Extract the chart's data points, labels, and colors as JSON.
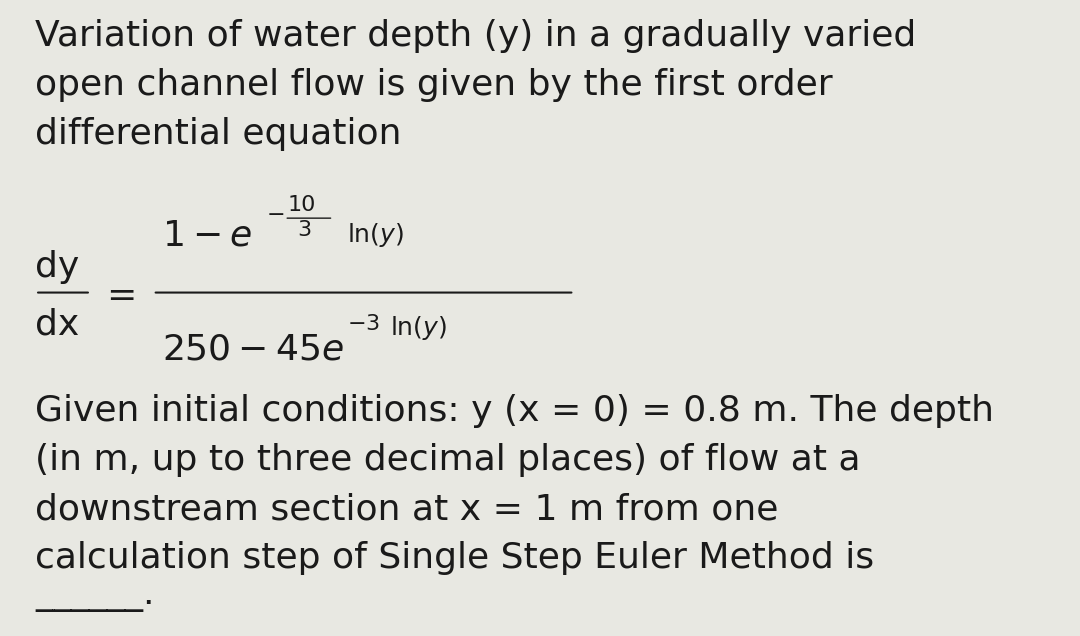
{
  "background_color": "#e8e8e2",
  "text_color": "#1a1a1a",
  "figsize": [
    10.8,
    6.36
  ],
  "dpi": 100,
  "intro_text": "Variation of water depth (y) in a gradually varied\nopen channel flow is given by the first order\ndifferential equation",
  "footer_text": "Given initial conditions: y (x = 0) = 0.8 m. The depth\n(in m, up to three decimal places) of flow at a\ndownstream section at x = 1 m from one\ncalculation step of Single Step Euler Method is",
  "underline_text": "______.",
  "main_font_size": 26,
  "eq_font_size": 22,
  "eq_small_font_size": 16,
  "eq_super_font_size": 13
}
